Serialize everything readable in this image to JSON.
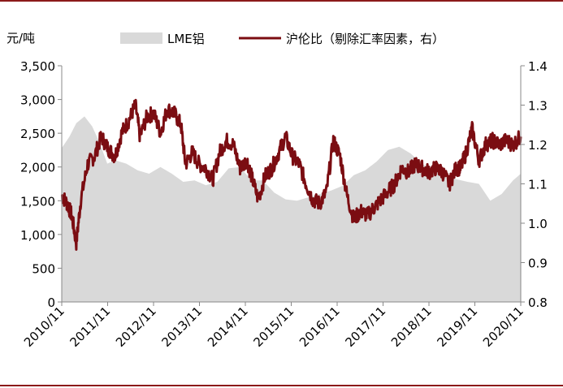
{
  "chart_data": {
    "type": "area+line",
    "unit_label": "元/吨",
    "legend": [
      {
        "name": "LME铝",
        "kind": "area",
        "color": "#d9d9d9"
      },
      {
        "name": "沪伦比（剔除汇率因素，右）",
        "kind": "line",
        "color": "#7b0d12"
      }
    ],
    "x_ticks": [
      "2010/11",
      "2011/11",
      "2012/11",
      "2013/11",
      "2014/11",
      "2015/11",
      "2016/11",
      "2017/11",
      "2018/11",
      "2019/11",
      "2020/11"
    ],
    "y_left": {
      "min": 0,
      "max": 3500,
      "ticks": [
        "0",
        "500",
        "1,000",
        "1,500",
        "2,000",
        "2,500",
        "3,000",
        "3,500"
      ]
    },
    "y_right": {
      "min": 0.8,
      "max": 1.4,
      "ticks": [
        "0.8",
        "0.9",
        "1.0",
        "1.1",
        "1.2",
        "1.3",
        "1.4"
      ]
    },
    "series": [
      {
        "name": "LME铝",
        "axis": "left",
        "x": [
          2010.83,
          2011.0,
          2011.15,
          2011.33,
          2011.5,
          2011.67,
          2011.83,
          2012.0,
          2012.25,
          2012.5,
          2012.75,
          2013.0,
          2013.25,
          2013.5,
          2013.75,
          2014.0,
          2014.25,
          2014.5,
          2014.75,
          2015.0,
          2015.25,
          2015.5,
          2015.75,
          2016.0,
          2016.25,
          2016.5,
          2016.75,
          2017.0,
          2017.25,
          2017.5,
          2017.75,
          2018.0,
          2018.25,
          2018.5,
          2018.75,
          2019.0,
          2019.25,
          2019.5,
          2019.75,
          2020.0,
          2020.25,
          2020.5,
          2020.75,
          2020.92
        ],
        "y": [
          2280,
          2450,
          2650,
          2750,
          2600,
          2350,
          2050,
          2100,
          2050,
          1950,
          1900,
          2000,
          1900,
          1780,
          1800,
          1730,
          1780,
          1980,
          2000,
          1800,
          1800,
          1620,
          1520,
          1500,
          1550,
          1600,
          1650,
          1720,
          1880,
          1950,
          2080,
          2250,
          2300,
          2200,
          2050,
          1950,
          1880,
          1820,
          1780,
          1750,
          1500,
          1600,
          1800,
          1900
        ]
      },
      {
        "name": "沪伦比（剔除汇率因素，右）",
        "axis": "right",
        "x": [
          2010.83,
          2010.95,
          2011.05,
          2011.15,
          2011.25,
          2011.4,
          2011.55,
          2011.7,
          2011.85,
          2012.0,
          2012.15,
          2012.3,
          2012.45,
          2012.55,
          2012.7,
          2012.85,
          2013.0,
          2013.15,
          2013.3,
          2013.45,
          2013.55,
          2013.7,
          2013.85,
          2014.0,
          2014.15,
          2014.3,
          2014.45,
          2014.6,
          2014.75,
          2014.9,
          2015.0,
          2015.15,
          2015.3,
          2015.45,
          2015.6,
          2015.75,
          2015.9,
          2016.05,
          2016.2,
          2016.35,
          2016.5,
          2016.65,
          2016.8,
          2016.95,
          2017.1,
          2017.25,
          2017.4,
          2017.55,
          2017.7,
          2017.85,
          2018.0,
          2018.15,
          2018.3,
          2018.45,
          2018.6,
          2018.75,
          2018.9,
          2019.05,
          2019.2,
          2019.35,
          2019.5,
          2019.6,
          2019.72,
          2019.85,
          2020.0,
          2020.15,
          2020.3,
          2020.45,
          2020.6,
          2020.75,
          2020.92
        ],
        "y": [
          1.07,
          1.05,
          1.02,
          0.95,
          1.06,
          1.15,
          1.17,
          1.22,
          1.19,
          1.17,
          1.23,
          1.26,
          1.3,
          1.22,
          1.27,
          1.28,
          1.23,
          1.29,
          1.28,
          1.25,
          1.15,
          1.18,
          1.15,
          1.14,
          1.11,
          1.18,
          1.21,
          1.2,
          1.14,
          1.16,
          1.12,
          1.06,
          1.12,
          1.14,
          1.18,
          1.22,
          1.17,
          1.15,
          1.1,
          1.06,
          1.05,
          1.08,
          1.21,
          1.17,
          1.07,
          1.01,
          1.03,
          1.02,
          1.04,
          1.06,
          1.08,
          1.1,
          1.14,
          1.13,
          1.15,
          1.14,
          1.13,
          1.14,
          1.13,
          1.1,
          1.14,
          1.14,
          1.18,
          1.24,
          1.16,
          1.2,
          1.21,
          1.2,
          1.21,
          1.2,
          1.22
        ]
      }
    ]
  }
}
